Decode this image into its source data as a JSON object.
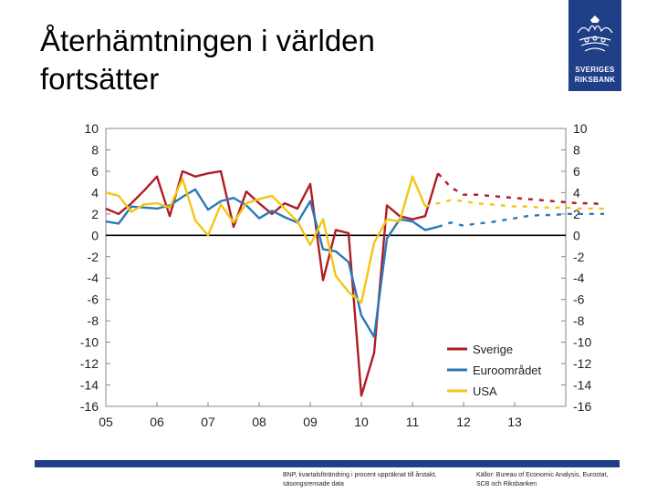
{
  "slide": {
    "title_lines": [
      "Återhämtningen i världen",
      "fortsätter"
    ],
    "logo": {
      "line1": "SVERIGES",
      "line2": "RIKSBANK",
      "brand_color": "#1f3f87"
    },
    "footnote_left": [
      "BNP, kvartalsförändring i procent uppräknat till årstakt,",
      "säsongsrensade data"
    ],
    "footnote_right": [
      "Källor: Bureau of Economic Analysis, Eurostat,",
      "SCB och Riksbanken"
    ]
  },
  "chart_data": {
    "type": "line",
    "title": "",
    "xlabel": "",
    "ylabel": "",
    "ylim": [
      -16,
      10
    ],
    "xlim": [
      2005.0,
      2014.0
    ],
    "yticks": [
      10,
      8,
      6,
      4,
      2,
      0,
      -2,
      -4,
      -6,
      -8,
      -10,
      -12,
      -14,
      -16
    ],
    "yticks_right": [
      10,
      8,
      6,
      4,
      2,
      0,
      -2,
      -4,
      -6,
      -8,
      -10,
      -12,
      -14,
      -16
    ],
    "xticks": [
      "05",
      "06",
      "07",
      "08",
      "09",
      "10",
      "11",
      "12",
      "13"
    ],
    "x_quarters_start": 2005.0,
    "legend": {
      "placement": "bottom-right",
      "entries": [
        "Sverige",
        "Euroområdet",
        "USA"
      ]
    },
    "series": [
      {
        "name": "Sverige",
        "color": "#b01c24",
        "actual": [
          2.5,
          2.0,
          3.0,
          4.2,
          5.5,
          1.8,
          6.0,
          5.5,
          5.8,
          6.0,
          0.8,
          4.1,
          3.0,
          2.0,
          3.0,
          2.5,
          4.8,
          -4.2,
          0.5,
          0.2,
          -15.0,
          -11.0,
          2.8,
          1.8,
          1.5,
          1.8,
          5.8
        ],
        "forecast": [
          4.5,
          3.8,
          3.8,
          3.7,
          3.6,
          3.5,
          3.4,
          3.3,
          3.2,
          3.1,
          3.0,
          3.0,
          2.9
        ]
      },
      {
        "name": "Euroområdet",
        "color": "#2b78b6",
        "actual": [
          1.3,
          1.1,
          2.7,
          2.6,
          2.5,
          2.8,
          3.6,
          4.3,
          2.4,
          3.2,
          3.5,
          2.8,
          1.6,
          2.3,
          1.7,
          1.2,
          3.2,
          -1.3,
          -1.5,
          -2.5,
          -7.5,
          -9.5,
          -0.3,
          1.5,
          1.3,
          0.5,
          0.8
        ],
        "forecast": [
          1.2,
          0.9,
          1.1,
          1.2,
          1.4,
          1.6,
          1.8,
          1.9,
          1.9,
          2.0,
          2.0,
          2.0,
          2.0
        ]
      },
      {
        "name": "USA",
        "color": "#f3c614",
        "actual": [
          4.0,
          3.7,
          2.2,
          2.9,
          3.0,
          2.6,
          5.3,
          1.4,
          0.0,
          2.9,
          1.2,
          3.0,
          3.4,
          3.7,
          2.5,
          1.3,
          -0.9,
          1.5,
          -3.8,
          -5.3,
          -6.3,
          -0.7,
          1.5,
          1.3,
          5.5,
          2.7
        ],
        "forecast": [
          3.0,
          3.3,
          3.2,
          3.0,
          2.9,
          2.8,
          2.7,
          2.7,
          2.6,
          2.6,
          2.6,
          2.5,
          2.5,
          2.5
        ]
      }
    ]
  }
}
